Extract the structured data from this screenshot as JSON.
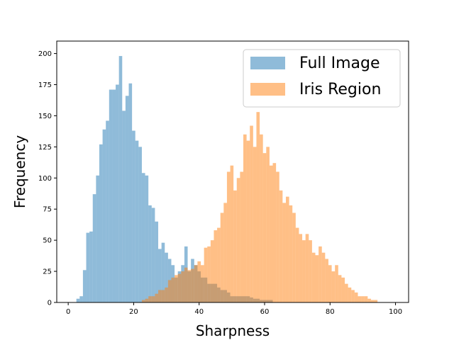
{
  "chart_data": {
    "type": "histogram",
    "xlabel": "Sharpness",
    "ylabel": "Frequency",
    "xlim": [
      -3.5,
      104
    ],
    "ylim": [
      0,
      210
    ],
    "xticks": [
      0,
      20,
      40,
      60,
      80,
      100
    ],
    "yticks": [
      0,
      25,
      50,
      75,
      100,
      125,
      150,
      175,
      200
    ],
    "grid": false,
    "legend_position": "top-right",
    "bin_width": 1.0,
    "series": [
      {
        "name": "Full Image",
        "color": "#1f77b4",
        "alpha": 0.5,
        "bin_start": 2.5,
        "values": [
          3,
          5,
          26,
          56,
          57,
          87,
          102,
          127,
          139,
          146,
          171,
          171,
          175,
          198,
          154,
          166,
          176,
          138,
          130,
          125,
          104,
          102,
          78,
          76,
          65,
          43,
          48,
          40,
          35,
          30,
          20,
          25,
          30,
          45,
          25,
          35,
          30,
          25,
          20,
          20,
          15,
          15,
          15,
          12,
          10,
          10,
          8,
          5,
          5,
          5,
          5,
          5,
          5,
          4,
          3,
          3,
          2,
          2,
          2,
          2
        ]
      },
      {
        "name": "Iris Region",
        "color": "#ff7f0e",
        "alpha": 0.5,
        "bin_start": 22.5,
        "values": [
          2,
          3,
          5,
          5,
          7,
          10,
          10,
          12,
          18,
          20,
          22,
          23,
          25,
          28,
          26,
          27,
          30,
          33,
          30,
          44,
          45,
          50,
          58,
          60,
          72,
          80,
          105,
          110,
          90,
          100,
          105,
          135,
          130,
          142,
          125,
          153,
          135,
          120,
          125,
          110,
          112,
          105,
          90,
          80,
          85,
          78,
          72,
          60,
          55,
          50,
          55,
          50,
          40,
          38,
          45,
          40,
          35,
          30,
          25,
          30,
          22,
          20,
          15,
          12,
          10,
          8,
          5,
          5,
          5,
          3,
          2,
          2
        ]
      }
    ]
  }
}
